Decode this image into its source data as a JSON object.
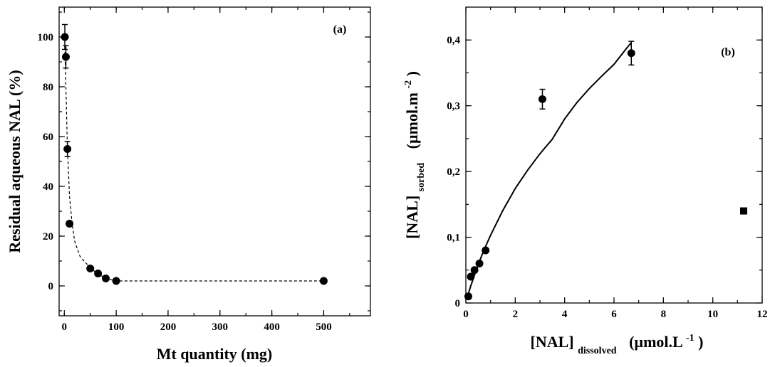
{
  "chart_data": [
    {
      "id": "a",
      "type": "scatter",
      "panel_label": "(a)",
      "xlabel": "Mt quantity (mg)",
      "ylabel": "Residual aqueous NAL (%)",
      "xlim": [
        -10,
        590
      ],
      "ylim": [
        -12,
        112
      ],
      "xticks": [
        0,
        100,
        200,
        300,
        400,
        500
      ],
      "yticks": [
        0,
        20,
        40,
        60,
        80,
        100
      ],
      "series": [
        {
          "marker": "circle",
          "x": [
            1,
            3,
            6,
            10,
            50,
            65,
            80,
            100,
            500
          ],
          "y": [
            100,
            92,
            55,
            25,
            7,
            5,
            3,
            2,
            2
          ],
          "yerr": [
            5,
            4.5,
            3,
            1,
            0.5,
            0.5,
            0.5,
            0.5,
            0.5
          ]
        }
      ],
      "fit": {
        "style": "dashed",
        "x": [
          1,
          3,
          6,
          10,
          15,
          20,
          30,
          40,
          50,
          60,
          70,
          80,
          90,
          100,
          150,
          200,
          300,
          400,
          500
        ],
        "y": [
          96,
          80,
          55,
          36,
          25,
          18,
          12,
          9.5,
          7.5,
          5.5,
          4.2,
          3.2,
          2.5,
          2,
          2,
          2,
          2,
          2,
          2
        ]
      }
    },
    {
      "id": "b",
      "type": "scatter",
      "panel_label": "(b)",
      "xlabel_main": "[NAL]",
      "xlabel_sub": "dissolved",
      "xlabel_unit": "(µmol.L",
      "xlabel_sup": "-1",
      "xlabel_close": ")",
      "ylabel_main": "[NAL]",
      "ylabel_sub": "sorbed",
      "ylabel_unit": "(µmol.m",
      "ylabel_sup": "-2",
      "ylabel_close": ")",
      "xlim": [
        0,
        12
      ],
      "ylim": [
        0,
        0.45
      ],
      "xticks": [
        0,
        2,
        4,
        6,
        8,
        10,
        12
      ],
      "xtick_labels": [
        "0",
        "2",
        "4",
        "6",
        "8",
        "10",
        "12"
      ],
      "yticks": [
        0,
        0.1,
        0.2,
        0.3,
        0.4
      ],
      "ytick_labels": [
        "0",
        "0,1",
        "0,2",
        "0,3",
        "0,4"
      ],
      "series": [
        {
          "marker": "circle",
          "x": [
            0.1,
            0.2,
            0.35,
            0.55,
            0.8,
            3.1,
            6.7
          ],
          "y": [
            0.01,
            0.04,
            0.05,
            0.06,
            0.08,
            0.31,
            0.38
          ],
          "yerr": [
            0,
            0.003,
            0.003,
            0.003,
            0.003,
            0.015,
            0.018
          ]
        },
        {
          "marker": "square",
          "x": [
            11.25
          ],
          "y": [
            0.14
          ],
          "yerr": [
            0
          ]
        }
      ],
      "fit": {
        "style": "solid",
        "x": [
          0.05,
          0.2,
          0.4,
          0.6,
          0.8,
          1.0,
          1.5,
          2.0,
          2.5,
          3.0,
          3.5,
          4.0,
          4.5,
          5.0,
          5.5,
          6.0,
          6.5,
          6.7
        ],
        "y": [
          0.008,
          0.026,
          0.048,
          0.068,
          0.086,
          0.103,
          0.141,
          0.174,
          0.202,
          0.227,
          0.249,
          0.28,
          0.305,
          0.326,
          0.345,
          0.363,
          0.387,
          0.396
        ]
      }
    }
  ]
}
